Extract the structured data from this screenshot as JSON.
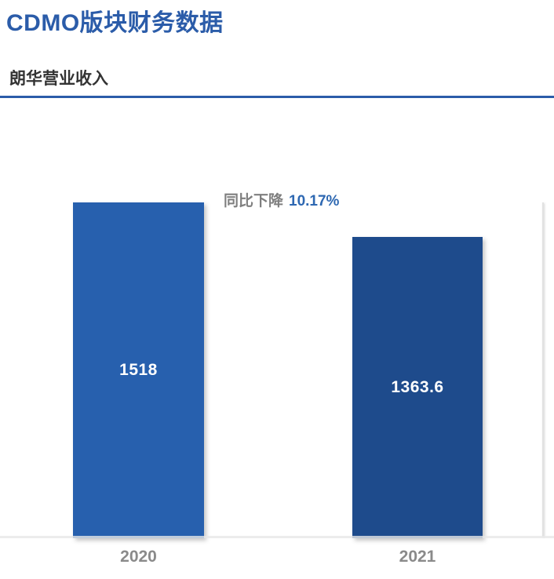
{
  "page": {
    "title": "CDMO版块财务数据",
    "subtitle": "朗华营业收入"
  },
  "annotation": {
    "prefix": "同比下降",
    "value": "10.17%"
  },
  "chart_data": {
    "type": "bar",
    "title": "朗华营业收入",
    "categories": [
      "2020",
      "2021"
    ],
    "values": [
      1518,
      1363.6
    ],
    "value_labels": [
      "1518",
      "1363.6"
    ],
    "series_name": "朗华营业收入",
    "annotation": "同比下降 10.17%",
    "ylim": [
      0,
      1518
    ],
    "grid": false,
    "legend": "none",
    "x_axis_labels_color": "#8A8A8A",
    "bar_colors": [
      "#2760AE",
      "#1E4B8C"
    ]
  },
  "colors": {
    "title_blue": "#2B5CA9",
    "divider_blue": "#2B5CA9",
    "annotation_gray": "#7F7F7F",
    "annotation_blue": "#2E68B2",
    "baseline_gray": "#E7E7E7",
    "value_label_white": "#FFFFFF"
  }
}
